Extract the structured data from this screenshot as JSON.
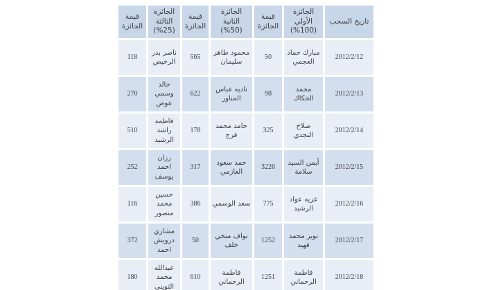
{
  "colors": {
    "header_bg": "#c8d6ea",
    "row_light_bg": "#e9eef6",
    "row_dark_bg": "#d3deef",
    "grid_gap": "#ffffff",
    "text": "#3d3d3d"
  },
  "table": {
    "columns": [
      {
        "key": "date",
        "label": "تاريخ السحب"
      },
      {
        "key": "first_winner",
        "label": "الجائزة الأولي (100%)"
      },
      {
        "key": "first_value",
        "label": "قيمة الجائزة"
      },
      {
        "key": "second_winner",
        "label": "الجائزة الثانية (50%)"
      },
      {
        "key": "second_value",
        "label": "قيمة الجائزة"
      },
      {
        "key": "third_winner",
        "label": "الجائزة الثالثة (25%)"
      },
      {
        "key": "third_value",
        "label": "قيمة الجائزة"
      }
    ],
    "rows": [
      {
        "date": "2012/2/12",
        "first_winner": "مبارك حماد العجمي",
        "first_value": "50",
        "second_winner": "محمود طاهر سليمان",
        "second_value": "565",
        "third_winner": "ناصر بدر الرخيص",
        "third_value": "118"
      },
      {
        "date": "2012/2/13",
        "first_winner": "محمد الحكاك",
        "first_value": "98",
        "second_winner": "ناديه عباس المناور",
        "second_value": "622",
        "third_winner": "خالد وسمي عوض",
        "third_value": "270"
      },
      {
        "date": "2012/2/14",
        "first_winner": "صلاح النجدي",
        "first_value": "325",
        "second_winner": "حامد محمد فرج",
        "second_value": "178",
        "third_winner": "فاطمه راشد الرشيد",
        "third_value": "510"
      },
      {
        "date": "2012/2/15",
        "first_winner": "أيمن السيد سلامة",
        "first_value": "3226",
        "second_winner": "حمد سعود العازمي",
        "second_value": "317",
        "third_winner": "رزان احمد يوسف",
        "third_value": "252"
      },
      {
        "date": "2012/2/16",
        "first_winner": "غزيه عواد الرشيد",
        "first_value": "775",
        "second_winner": "سعد الوسمي",
        "second_value": "386",
        "third_winner": "حسين محمد منصور",
        "third_value": "116"
      },
      {
        "date": "2012/2/17",
        "first_winner": "نوير محمد فهيد",
        "first_value": "1252",
        "second_winner": "نواف منخي خلف",
        "second_value": "50",
        "third_winner": "مشاري درويش احمد",
        "third_value": "372"
      },
      {
        "date": "2012/2/18",
        "first_winner": "فاطمة الرحماني",
        "first_value": "1251",
        "second_winner": "فاطمة الرحماني",
        "second_value": "610",
        "third_winner": "عبدالله محمد الثويني",
        "third_value": "180"
      }
    ]
  }
}
